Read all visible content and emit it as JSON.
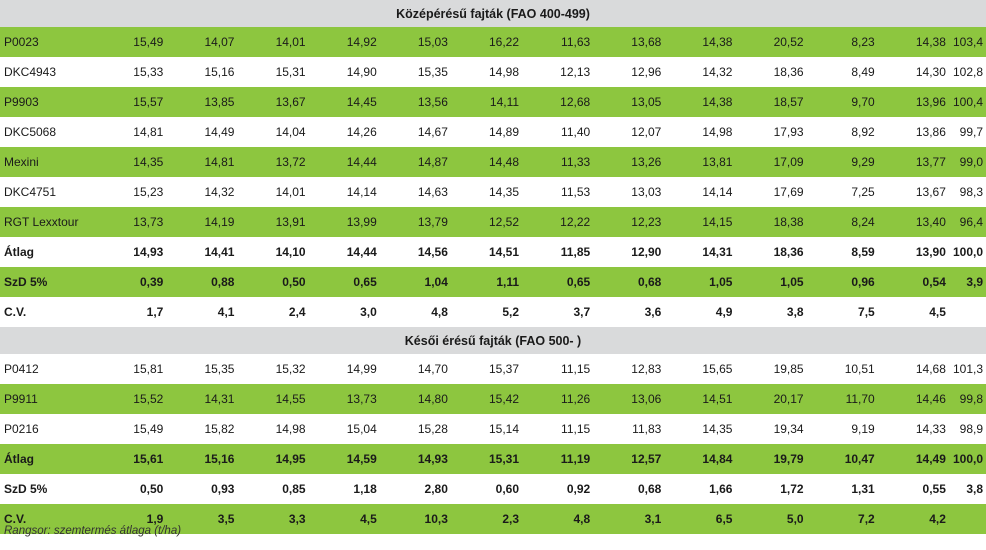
{
  "sections": [
    {
      "title": "Középérésű fajták (FAO 400-499)",
      "rows": [
        {
          "name": "P0023",
          "v": [
            "15,49",
            "14,07",
            "14,01",
            "14,92",
            "15,03",
            "16,22",
            "11,63",
            "13,68",
            "14,38",
            "20,52",
            "8,23",
            "14,38",
            "103,4"
          ],
          "style": "g",
          "bold": false
        },
        {
          "name": "DKC4943",
          "v": [
            "15,33",
            "15,16",
            "15,31",
            "14,90",
            "15,35",
            "14,98",
            "12,13",
            "12,96",
            "14,32",
            "18,36",
            "8,49",
            "14,30",
            "102,8"
          ],
          "style": "w",
          "bold": false
        },
        {
          "name": "P9903",
          "v": [
            "15,57",
            "13,85",
            "13,67",
            "14,45",
            "13,56",
            "14,11",
            "12,68",
            "13,05",
            "14,38",
            "18,57",
            "9,70",
            "13,96",
            "100,4"
          ],
          "style": "g",
          "bold": false
        },
        {
          "name": "DKC5068",
          "v": [
            "14,81",
            "14,49",
            "14,04",
            "14,26",
            "14,67",
            "14,89",
            "11,40",
            "12,07",
            "14,98",
            "17,93",
            "8,92",
            "13,86",
            "99,7"
          ],
          "style": "w",
          "bold": false
        },
        {
          "name": "Mexini",
          "v": [
            "14,35",
            "14,81",
            "13,72",
            "14,44",
            "14,87",
            "14,48",
            "11,33",
            "13,26",
            "13,81",
            "17,09",
            "9,29",
            "13,77",
            "99,0"
          ],
          "style": "g",
          "bold": false
        },
        {
          "name": "DKC4751",
          "v": [
            "15,23",
            "14,32",
            "14,01",
            "14,14",
            "14,63",
            "14,35",
            "11,53",
            "13,03",
            "14,14",
            "17,69",
            "7,25",
            "13,67",
            "98,3"
          ],
          "style": "w",
          "bold": false
        },
        {
          "name": "RGT Lexxtour",
          "v": [
            "13,73",
            "14,19",
            "13,91",
            "13,99",
            "13,79",
            "12,52",
            "12,22",
            "12,23",
            "14,15",
            "18,38",
            "8,24",
            "13,40",
            "96,4"
          ],
          "style": "g",
          "bold": false
        },
        {
          "name": "Átlag",
          "v": [
            "14,93",
            "14,41",
            "14,10",
            "14,44",
            "14,56",
            "14,51",
            "11,85",
            "12,90",
            "14,31",
            "18,36",
            "8,59",
            "13,90",
            "100,0"
          ],
          "style": "w",
          "bold": true
        },
        {
          "name": "SzD 5%",
          "v": [
            "0,39",
            "0,88",
            "0,50",
            "0,65",
            "1,04",
            "1,11",
            "0,65",
            "0,68",
            "1,05",
            "1,05",
            "0,96",
            "0,54",
            "3,9"
          ],
          "style": "g",
          "bold": true
        },
        {
          "name": "C.V.",
          "v": [
            "1,7",
            "4,1",
            "2,4",
            "3,0",
            "4,8",
            "5,2",
            "3,7",
            "3,6",
            "4,9",
            "3,8",
            "7,5",
            "4,5",
            ""
          ],
          "style": "w",
          "bold": true
        }
      ]
    },
    {
      "title": "Késői érésű fajták (FAO 500- )",
      "rows": [
        {
          "name": "P0412",
          "v": [
            "15,81",
            "15,35",
            "15,32",
            "14,99",
            "14,70",
            "15,37",
            "11,15",
            "12,83",
            "15,65",
            "19,85",
            "10,51",
            "14,68",
            "101,3"
          ],
          "style": "w",
          "bold": false
        },
        {
          "name": "P9911",
          "v": [
            "15,52",
            "14,31",
            "14,55",
            "13,73",
            "14,80",
            "15,42",
            "11,26",
            "13,06",
            "14,51",
            "20,17",
            "11,70",
            "14,46",
            "99,8"
          ],
          "style": "g",
          "bold": false
        },
        {
          "name": "P0216",
          "v": [
            "15,49",
            "15,82",
            "14,98",
            "15,04",
            "15,28",
            "15,14",
            "11,15",
            "11,83",
            "14,35",
            "19,34",
            "9,19",
            "14,33",
            "98,9"
          ],
          "style": "w",
          "bold": false
        },
        {
          "name": "Átlag",
          "v": [
            "15,61",
            "15,16",
            "14,95",
            "14,59",
            "14,93",
            "15,31",
            "11,19",
            "12,57",
            "14,84",
            "19,79",
            "10,47",
            "14,49",
            "100,0"
          ],
          "style": "g",
          "bold": true
        },
        {
          "name": "SzD 5%",
          "v": [
            "0,50",
            "0,93",
            "0,85",
            "1,18",
            "2,80",
            "0,60",
            "0,92",
            "0,68",
            "1,66",
            "1,72",
            "1,31",
            "0,55",
            "3,8"
          ],
          "style": "w",
          "bold": true
        },
        {
          "name": "C.V.",
          "v": [
            "1,9",
            "3,5",
            "3,3",
            "4,5",
            "10,3",
            "2,3",
            "4,8",
            "3,1",
            "6,5",
            "5,0",
            "7,2",
            "4,2",
            ""
          ],
          "style": "g",
          "bold": true
        }
      ]
    }
  ],
  "footnote": "Rangsor: szemtermés átlaga (t/ha)",
  "colors": {
    "green": "#8dc63f",
    "header_gray": "#d9dadb",
    "white": "#ffffff"
  }
}
